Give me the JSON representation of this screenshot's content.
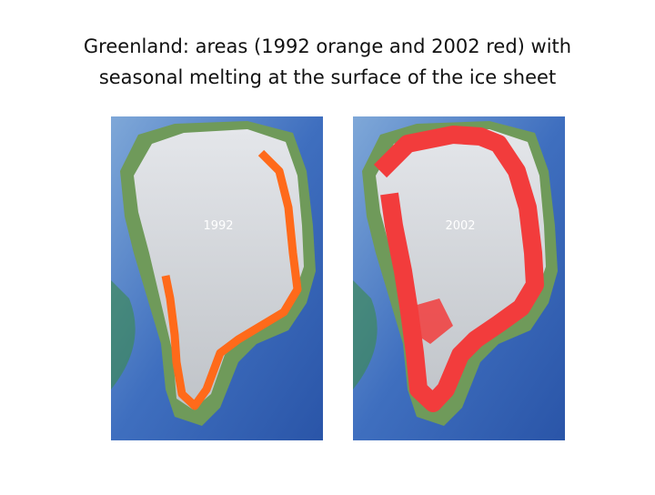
{
  "title": [
    "Greenland: areas (1992 orange and 2002 red) with",
    "seasonal melting at the surface of the ice sheet"
  ],
  "maps": [
    {
      "label": "1992"
    },
    {
      "label": "2002"
    }
  ]
}
